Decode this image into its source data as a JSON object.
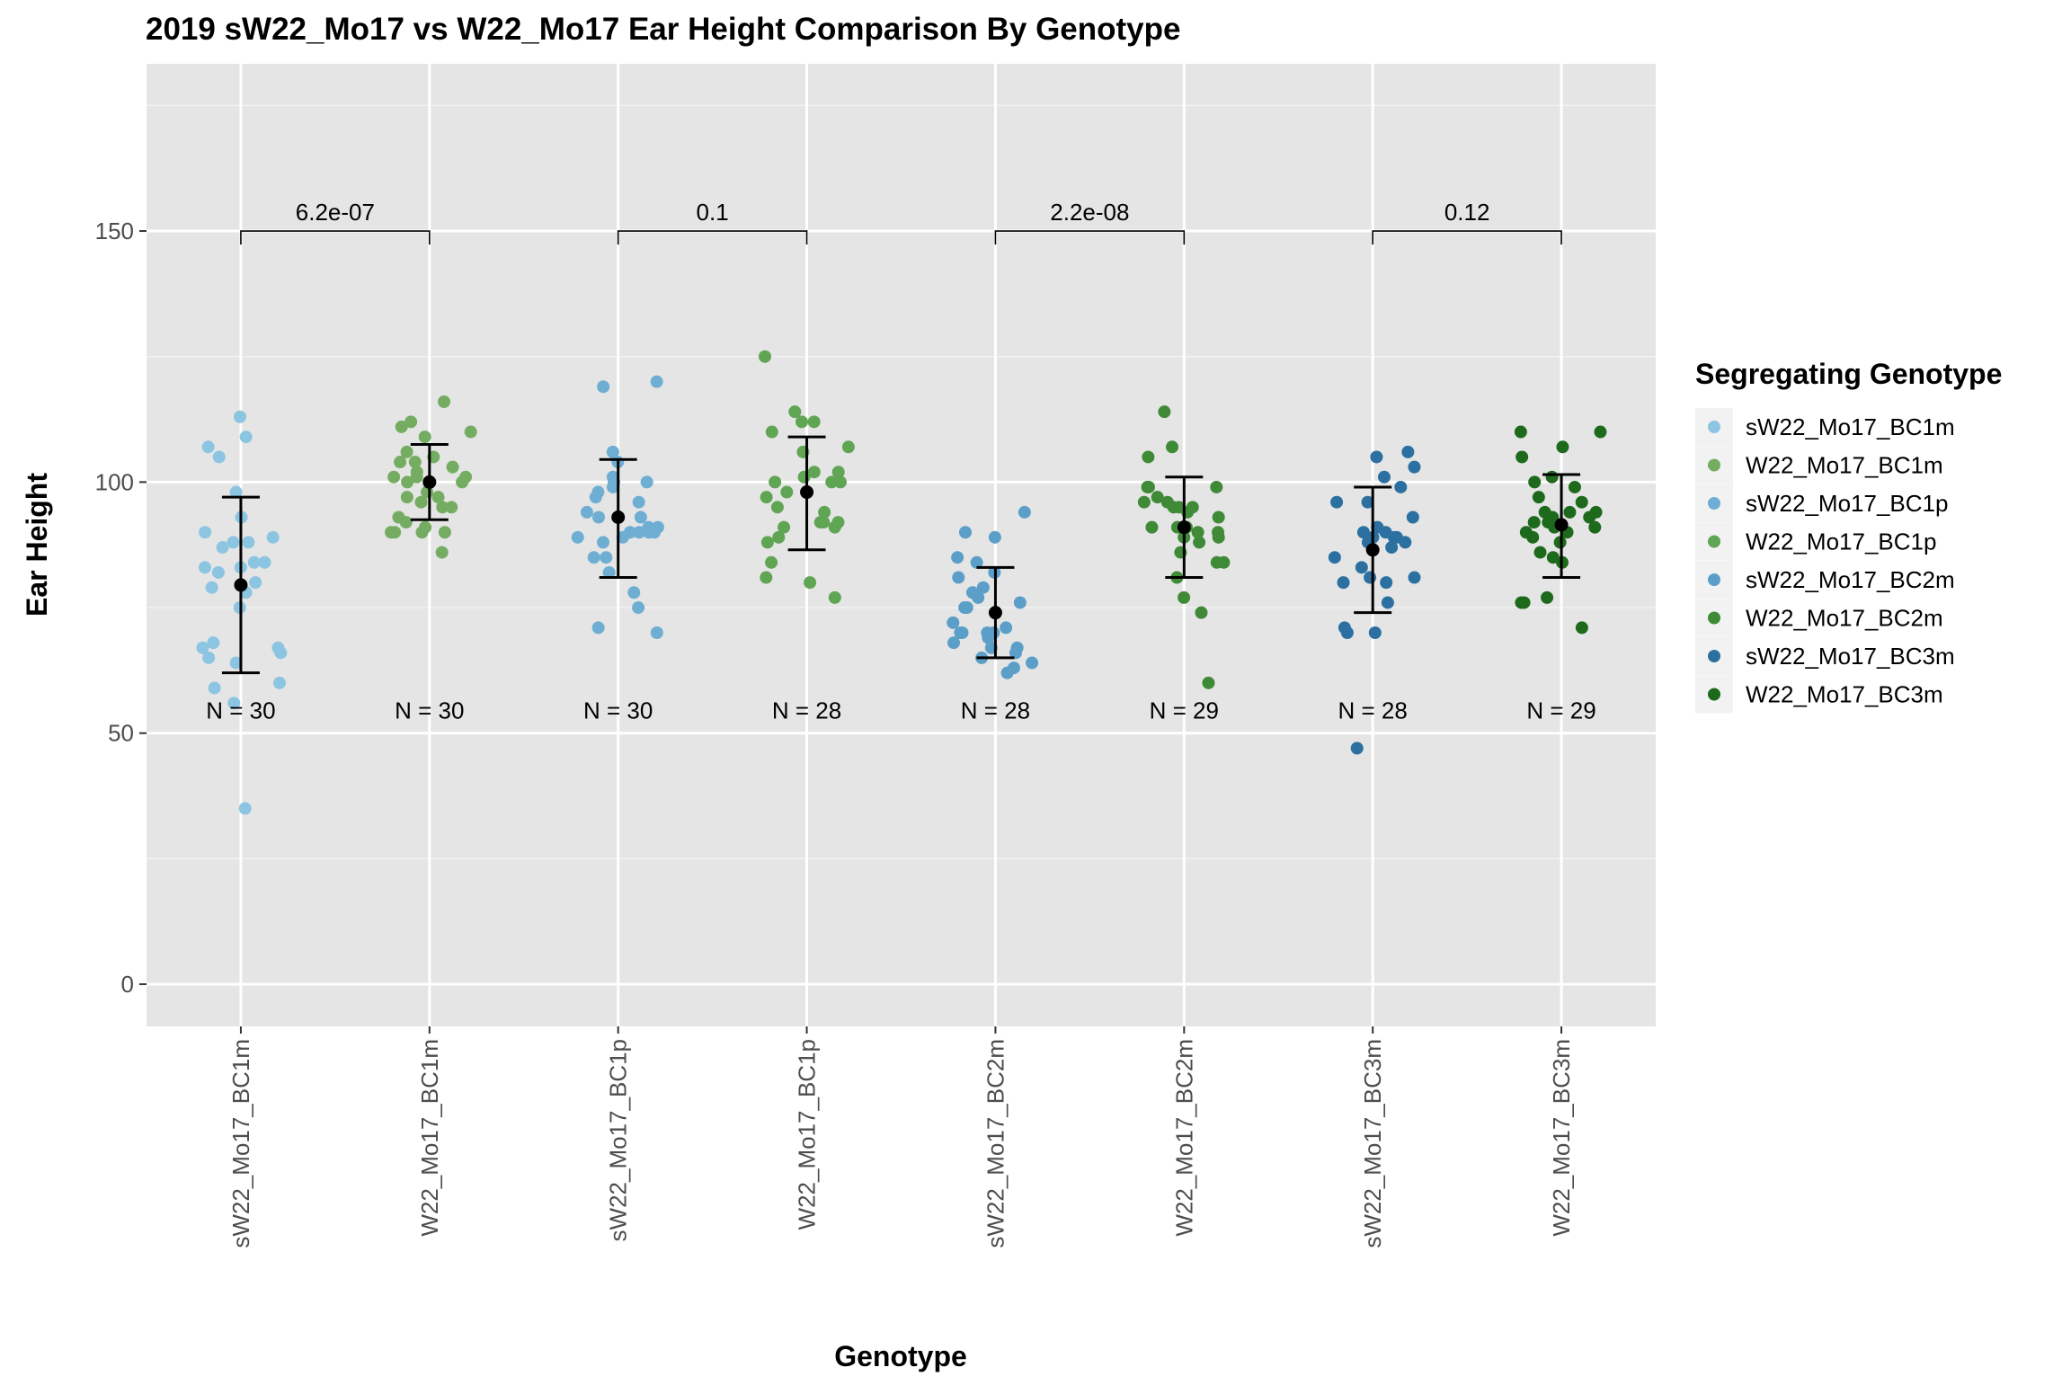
{
  "chart_data": {
    "type": "scatter",
    "title": "2019 sW22_Mo17 vs W22_Mo17 Ear Height Comparison By Genotype",
    "xlabel": "Genotype",
    "ylabel": "Ear Height",
    "ylim": [
      -8.4,
      183.3
    ],
    "yticks": [
      0,
      50,
      100,
      150
    ],
    "grid": true,
    "legend": {
      "title": "Segregating Genotype",
      "placement": "right"
    },
    "categories": [
      "sW22_Mo17_BC1m",
      "W22_Mo17_BC1m",
      "sW22_Mo17_BC1p",
      "W22_Mo17_BC1p",
      "sW22_Mo17_BC2m",
      "W22_Mo17_BC2m",
      "sW22_Mo17_BC3m",
      "W22_Mo17_BC3m"
    ],
    "series": [
      {
        "name": "sW22_Mo17_BC1m",
        "color": "#8cc5e1",
        "n_label": "N = 30",
        "mean": 79.5,
        "sd_low": 62,
        "sd_high": 97,
        "values": [
          113,
          109,
          107,
          105,
          98,
          93,
          90,
          89,
          88,
          88,
          87,
          84,
          84,
          83,
          83,
          82,
          80,
          79,
          78,
          75,
          68,
          67,
          67,
          66,
          65,
          64,
          60,
          59,
          56,
          35
        ]
      },
      {
        "name": "W22_Mo17_BC1m",
        "color": "#74ad62",
        "n_label": "N = 30",
        "mean": 100,
        "sd_low": 92.5,
        "sd_high": 107.5,
        "values": [
          116,
          112,
          111,
          110,
          109,
          106,
          105,
          104,
          104,
          103,
          102,
          101,
          101,
          101,
          100,
          100,
          98,
          97,
          97,
          96,
          95,
          95,
          93,
          92,
          91,
          90,
          90,
          90,
          90,
          86
        ]
      },
      {
        "name": "sW22_Mo17_BC1p",
        "color": "#6eaed3",
        "n_label": "N = 30",
        "mean": 93,
        "sd_low": 81,
        "sd_high": 104.5,
        "values": [
          120,
          119,
          106,
          104,
          101,
          100,
          100,
          99,
          98,
          97,
          96,
          94,
          93,
          93,
          91,
          91,
          90,
          90,
          90,
          90,
          89,
          89,
          88,
          85,
          85,
          82,
          78,
          75,
          71,
          70
        ]
      },
      {
        "name": "W22_Mo17_BC1p",
        "color": "#5fa553",
        "n_label": "N = 28",
        "mean": 98,
        "sd_low": 86.5,
        "sd_high": 109,
        "values": [
          125,
          114,
          112,
          112,
          110,
          107,
          106,
          102,
          102,
          101,
          100,
          100,
          100,
          98,
          97,
          95,
          94,
          92,
          92,
          92,
          91,
          91,
          89,
          88,
          84,
          81,
          80,
          77
        ]
      },
      {
        "name": "sW22_Mo17_BC2m",
        "color": "#5b9fc8",
        "n_label": "N = 28",
        "mean": 74,
        "sd_low": 65,
        "sd_high": 83,
        "values": [
          94,
          90,
          89,
          85,
          84,
          82,
          81,
          79,
          78,
          77,
          76,
          75,
          75,
          72,
          71,
          70,
          70,
          70,
          70,
          69,
          68,
          67,
          67,
          66,
          65,
          64,
          63,
          62
        ]
      },
      {
        "name": "W22_Mo17_BC2m",
        "color": "#3f8a37",
        "n_label": "N = 29",
        "mean": 91,
        "sd_low": 81,
        "sd_high": 101,
        "values": [
          114,
          107,
          105,
          99,
          99,
          99,
          97,
          96,
          96,
          95,
          95,
          95,
          94,
          93,
          91,
          91,
          91,
          90,
          90,
          89,
          89,
          88,
          86,
          84,
          84,
          81,
          77,
          74,
          60
        ]
      },
      {
        "name": "sW22_Mo17_BC3m",
        "color": "#2b70a0",
        "n_label": "N = 28",
        "mean": 86.5,
        "sd_low": 74,
        "sd_high": 99,
        "values": [
          106,
          105,
          103,
          101,
          99,
          96,
          96,
          93,
          91,
          90,
          90,
          89,
          89,
          89,
          88,
          88,
          87,
          85,
          83,
          81,
          81,
          80,
          80,
          76,
          71,
          70,
          70,
          47
        ]
      },
      {
        "name": "W22_Mo17_BC3m",
        "color": "#1e6a1d",
        "n_label": "N = 29",
        "mean": 91.5,
        "sd_low": 81,
        "sd_high": 101.5,
        "values": [
          110,
          110,
          107,
          105,
          101,
          100,
          99,
          97,
          96,
          94,
          94,
          94,
          93,
          93,
          92,
          92,
          91,
          91,
          90,
          90,
          89,
          88,
          86,
          85,
          84,
          77,
          76,
          76,
          71
        ]
      }
    ],
    "n_label_y": 54.5,
    "comparisons": [
      {
        "from": 0,
        "to": 1,
        "y": 150,
        "label": "6.2e-07"
      },
      {
        "from": 2,
        "to": 3,
        "y": 150,
        "label": "0.1"
      },
      {
        "from": 4,
        "to": 5,
        "y": 150,
        "label": "2.2e-08"
      },
      {
        "from": 6,
        "to": 7,
        "y": 150,
        "label": "0.12"
      }
    ]
  }
}
